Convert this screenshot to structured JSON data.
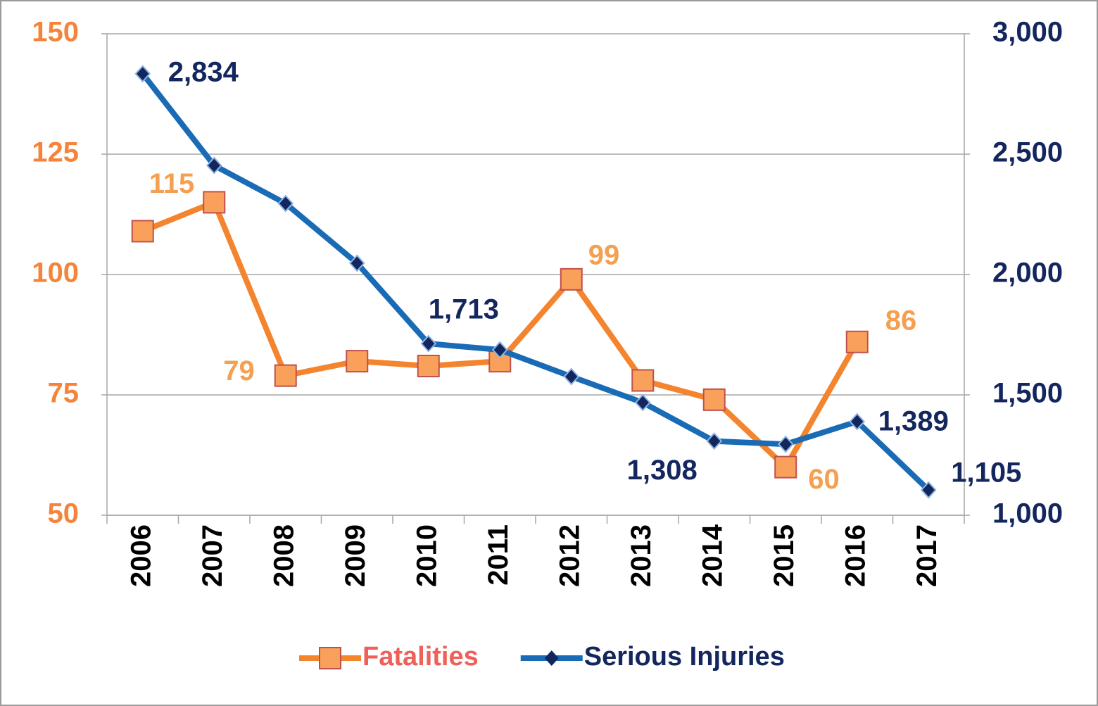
{
  "chart_data": {
    "type": "line",
    "categories": [
      "2006",
      "2007",
      "2008",
      "2009",
      "2010",
      "2011",
      "2012",
      "2013",
      "2014",
      "2015",
      "2016",
      "2017"
    ],
    "series": [
      {
        "name": "Fatalities",
        "color": "#f4842d",
        "marker_color": "#f9a15b",
        "label_color": "#f5a050",
        "legend_color": "#f0605a",
        "values": [
          109,
          115,
          79,
          82,
          81,
          82,
          99,
          78,
          74,
          60,
          86,
          null
        ],
        "value_labels": [
          null,
          "115",
          "79",
          null,
          null,
          null,
          "99",
          null,
          null,
          "60",
          "86",
          null
        ]
      },
      {
        "name": "Serious Injuries",
        "color": "#1a6bb5",
        "marker_color": "#13275e",
        "label_color": "#13275e",
        "legend_color": "#13275e",
        "axis": "y2",
        "values": [
          2834,
          2453,
          2295,
          2047,
          1713,
          1687,
          1576,
          1468,
          1308,
          1295,
          1389,
          1105
        ],
        "value_labels": [
          "2,834",
          null,
          null,
          null,
          "1,713",
          null,
          null,
          null,
          "1,308",
          null,
          "1,389",
          "1,105"
        ]
      }
    ],
    "ylim": [
      50,
      150
    ],
    "yticks": [
      50,
      75,
      100,
      125,
      150
    ],
    "ytick_color": "#f5843a",
    "y2lim": [
      1000,
      3000
    ],
    "y2ticks": [
      {
        "value": 1000,
        "label": "1,000"
      },
      {
        "value": 1500,
        "label": "1,500"
      },
      {
        "value": 2000,
        "label": "2,000"
      },
      {
        "value": 2500,
        "label": "2,500"
      },
      {
        "value": 3000,
        "label": "3,000"
      }
    ],
    "y2tick_color": "#13275e",
    "grid": true,
    "legend": "bottom"
  }
}
